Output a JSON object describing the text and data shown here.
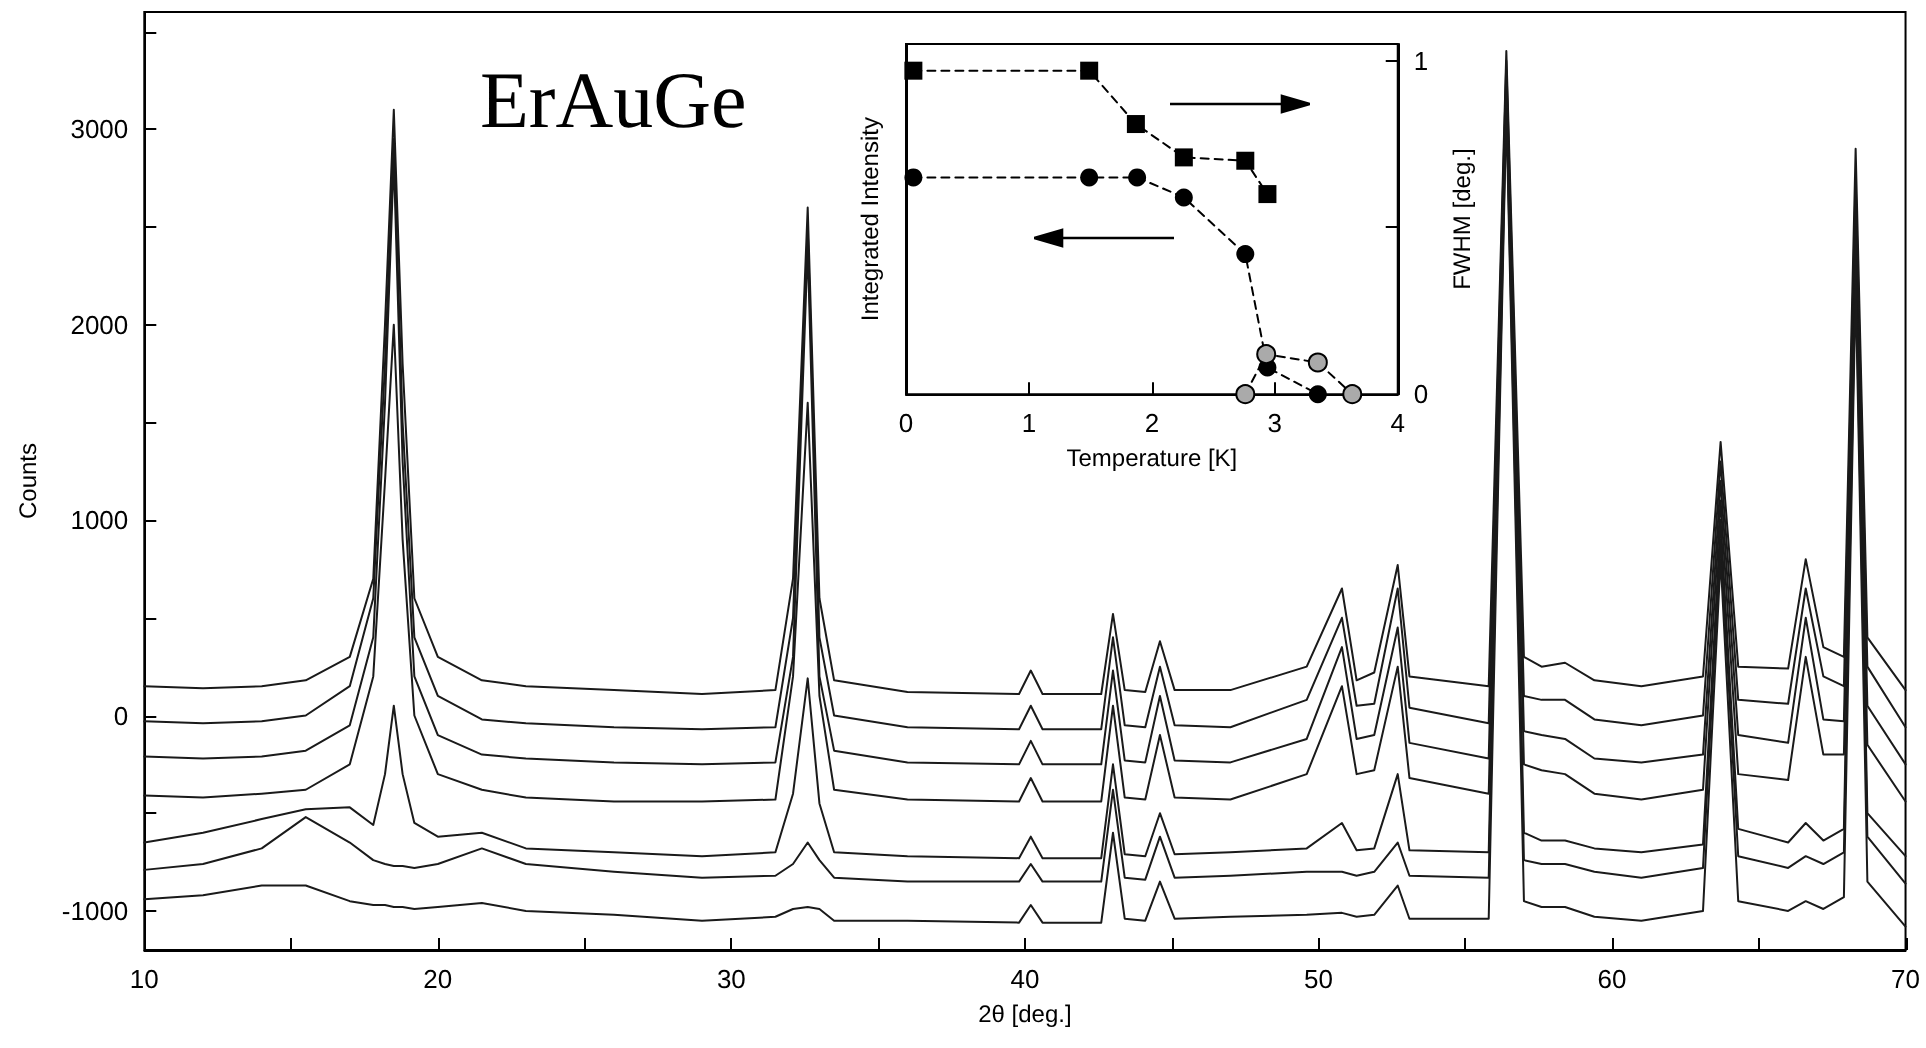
{
  "chart_data": [
    {
      "type": "line",
      "xlabel": "2θ [deg.]",
      "ylabel": "Counts",
      "annotations": [
        "ErAuGe"
      ],
      "marker": "none",
      "line_style": "solid",
      "xlim": [
        10,
        70
      ],
      "ylim": [
        -1200,
        3600
      ],
      "xticks": [
        10,
        {
          "value": 15,
          "label": null
        },
        20,
        {
          "value": 25,
          "label": null
        },
        30,
        {
          "value": 35,
          "label": null
        },
        40,
        {
          "value": 45,
          "label": null
        },
        50,
        {
          "value": 55,
          "label": null
        },
        60,
        {
          "value": 65,
          "label": null
        },
        70
      ],
      "yticks": [
        -1000,
        {
          "value": -500,
          "label": null
        },
        0,
        {
          "value": 500,
          "label": null
        },
        1000,
        {
          "value": 1500,
          "label": null
        },
        2000,
        {
          "value": 2500,
          "label": null
        },
        3000,
        {
          "value": 3500,
          "label": null
        }
      ],
      "x": [
        10,
        12,
        14,
        15.5,
        17,
        17.8,
        18.2,
        18.5,
        18.8,
        19.2,
        20,
        21.5,
        23,
        26,
        29,
        31.5,
        32.1,
        32.6,
        33,
        33.5,
        36,
        39.8,
        40.2,
        40.6,
        42.6,
        43,
        43.4,
        44.1,
        44.6,
        45.1,
        47,
        49.6,
        50.8,
        51.3,
        51.9,
        52.7,
        53.1,
        55.8,
        56.4,
        57,
        57.6,
        58.4,
        59.4,
        61,
        63.1,
        63.7,
        64.3,
        66,
        66.6,
        67.2,
        67.9,
        68.3,
        68.7,
        70
      ],
      "series": [
        {
          "color": "#1a1a1a",
          "values": [
            150,
            140,
            150,
            180,
            300,
            700,
            2000,
            3100,
            1800,
            600,
            300,
            180,
            150,
            130,
            110,
            130,
            700,
            2600,
            600,
            180,
            120,
            110,
            230,
            110,
            110,
            520,
            130,
            120,
            380,
            130,
            130,
            250,
            650,
            180,
            220,
            770,
            200,
            150,
            3400,
            300,
            250,
            270,
            180,
            150,
            200,
            1400,
            250,
            240,
            800,
            350,
            300,
            2900,
            400,
            130
          ]
        },
        {
          "color": "#1a1a1a",
          "values": [
            -30,
            -40,
            -30,
            0,
            150,
            600,
            1800,
            2950,
            1500,
            400,
            100,
            -20,
            -40,
            -60,
            -70,
            -60,
            500,
            2500,
            400,
            0,
            -60,
            -70,
            50,
            -70,
            -70,
            400,
            -50,
            -60,
            250,
            -50,
            -60,
            80,
            500,
            50,
            60,
            650,
            40,
            -40,
            3350,
            100,
            80,
            80,
            -20,
            -50,
            0,
            1300,
            80,
            60,
            650,
            200,
            150,
            2750,
            250,
            -60
          ]
        },
        {
          "color": "#1a1a1a",
          "values": [
            -210,
            -220,
            -210,
            -180,
            -50,
            400,
            1600,
            2850,
            1300,
            200,
            -100,
            -200,
            -220,
            -240,
            -250,
            -240,
            300,
            2400,
            200,
            -180,
            -240,
            -250,
            -130,
            -250,
            -250,
            230,
            -230,
            -240,
            100,
            -230,
            -240,
            -120,
            350,
            -120,
            -100,
            450,
            -140,
            -220,
            3300,
            -80,
            -100,
            -120,
            -220,
            -240,
            -200,
            1200,
            -100,
            -140,
            500,
            -20,
            -30,
            2650,
            50,
            -250
          ]
        },
        {
          "color": "#1a1a1a",
          "values": [
            -410,
            -420,
            -400,
            -380,
            -250,
            200,
            1200,
            2000,
            900,
            0,
            -300,
            -380,
            -420,
            -440,
            -440,
            -430,
            200,
            1600,
            100,
            -380,
            -430,
            -440,
            -320,
            -440,
            -440,
            50,
            -420,
            -430,
            -100,
            -420,
            -430,
            -300,
            150,
            -300,
            -280,
            250,
            -320,
            -400,
            3250,
            -250,
            -280,
            -300,
            -400,
            -430,
            -380,
            1100,
            -300,
            -330,
            300,
            -200,
            -200,
            2500,
            -150,
            -440
          ]
        },
        {
          "color": "#1a1a1a",
          "values": [
            -650,
            -600,
            -530,
            -480,
            -470,
            -560,
            -300,
            50,
            -300,
            -550,
            -620,
            -600,
            -680,
            -700,
            -720,
            -700,
            -400,
            190,
            -450,
            -700,
            -720,
            -730,
            -620,
            -730,
            -730,
            -250,
            -710,
            -720,
            -500,
            -710,
            -700,
            -680,
            -550,
            -690,
            -680,
            -300,
            -690,
            -700,
            3200,
            -600,
            -640,
            -640,
            -680,
            -700,
            -660,
            1000,
            -580,
            -650,
            -550,
            -640,
            -580,
            2400,
            -500,
            -720
          ]
        },
        {
          "color": "#1a1a1a",
          "values": [
            -790,
            -760,
            -680,
            -520,
            -650,
            -740,
            -760,
            -770,
            -770,
            -780,
            -760,
            -680,
            -760,
            -800,
            -830,
            -820,
            -760,
            -650,
            -740,
            -830,
            -850,
            -850,
            -760,
            -850,
            -850,
            -380,
            -830,
            -840,
            -620,
            -830,
            -820,
            -800,
            -800,
            -820,
            -800,
            -650,
            -820,
            -830,
            3150,
            -740,
            -760,
            -760,
            -800,
            -830,
            -780,
            900,
            -720,
            -780,
            -720,
            -760,
            -700,
            2300,
            -620,
            -860
          ]
        },
        {
          "color": "#1a1a1a",
          "values": [
            -940,
            -920,
            -870,
            -870,
            -950,
            -970,
            -970,
            -980,
            -980,
            -990,
            -980,
            -960,
            -1000,
            -1020,
            -1050,
            -1030,
            -990,
            -980,
            -990,
            -1050,
            -1050,
            -1060,
            -970,
            -1060,
            -1060,
            -600,
            -1040,
            -1050,
            -850,
            -1040,
            -1030,
            -1020,
            -1010,
            -1030,
            -1020,
            -870,
            -1040,
            -1040,
            3100,
            -950,
            -980,
            -980,
            -1030,
            -1050,
            -1000,
            800,
            -950,
            -1000,
            -950,
            -990,
            -930,
            2200,
            -850,
            -1080
          ]
        }
      ]
    },
    {
      "type": "line",
      "xlabel": "Temperature [K]",
      "ylabel": "Integrated Intensity",
      "y2label": "FWHM [deg.]",
      "line_style": "dashed",
      "xlim": [
        0,
        4
      ],
      "xticks": [
        0,
        1,
        2,
        3,
        4
      ],
      "y2lim": [
        0,
        1.05
      ],
      "y2ticks": [
        0,
        {
          "value": 0.5,
          "label": null
        },
        1
      ],
      "series": [
        {
          "axis": "y2",
          "marker": "square",
          "color": "#000000",
          "x": [
            0.06,
            1.49,
            1.87,
            2.26,
            2.76,
            2.94
          ],
          "values": [
            0.97,
            0.97,
            0.81,
            0.71,
            0.7,
            0.6
          ]
        },
        {
          "axis": "y2",
          "marker": "circle",
          "color": "#000000",
          "x": [
            0.06,
            1.49,
            1.88,
            2.26,
            2.76,
            2.94,
            3.35
          ],
          "values": [
            0.65,
            0.65,
            0.65,
            0.59,
            0.42,
            0.08,
            0
          ]
        },
        {
          "axis": "y2",
          "marker": "circle",
          "color": "#aaaaaa",
          "x": [
            2.76,
            2.93,
            3.35,
            3.63
          ],
          "values": [
            0,
            0.12,
            0.095,
            0
          ]
        }
      ]
    }
  ]
}
